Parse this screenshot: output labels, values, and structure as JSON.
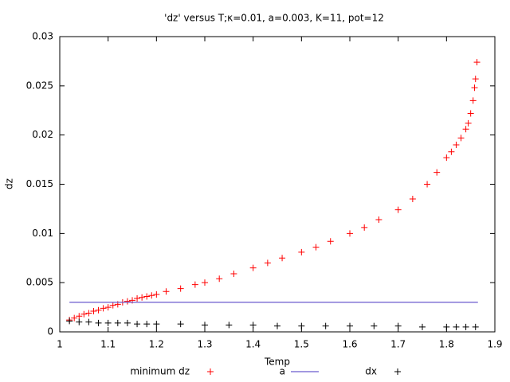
{
  "chart_data": {
    "type": "scatter",
    "title": "'dz' versus T;κ=0.01, a=0.003, K=11, pot=12",
    "xlabel": "Temp",
    "ylabel": "dz",
    "xlim": [
      1,
      1.9
    ],
    "xticks": [
      1,
      1.1,
      1.2,
      1.3,
      1.4,
      1.5,
      1.6,
      1.7,
      1.8,
      1.9
    ],
    "ylim": [
      0,
      0.03
    ],
    "yticks": [
      0,
      0.005,
      0.01,
      0.015,
      0.02,
      0.025,
      0.03
    ],
    "series": [
      {
        "name": "minimum dz",
        "color": "#ff0000",
        "style": "points",
        "x": [
          1.02,
          1.03,
          1.04,
          1.05,
          1.06,
          1.07,
          1.08,
          1.09,
          1.1,
          1.11,
          1.12,
          1.13,
          1.14,
          1.15,
          1.16,
          1.17,
          1.18,
          1.19,
          1.2,
          1.22,
          1.25,
          1.28,
          1.3,
          1.33,
          1.36,
          1.4,
          1.43,
          1.46,
          1.5,
          1.53,
          1.56,
          1.6,
          1.63,
          1.66,
          1.7,
          1.73,
          1.76,
          1.78,
          1.8,
          1.81,
          1.82,
          1.83,
          1.84,
          1.845,
          1.85,
          1.855,
          1.858,
          1.86,
          1.863
        ],
        "values": [
          0.0012,
          0.0014,
          0.0016,
          0.0018,
          0.0019,
          0.0021,
          0.0022,
          0.0024,
          0.0025,
          0.0027,
          0.0028,
          0.003,
          0.0031,
          0.0032,
          0.0034,
          0.0035,
          0.0036,
          0.0037,
          0.0038,
          0.0041,
          0.0044,
          0.0048,
          0.005,
          0.0054,
          0.0059,
          0.0065,
          0.007,
          0.0075,
          0.0081,
          0.0086,
          0.0092,
          0.01,
          0.0106,
          0.0114,
          0.0124,
          0.0135,
          0.015,
          0.0162,
          0.0177,
          0.0183,
          0.019,
          0.0197,
          0.0206,
          0.0212,
          0.0222,
          0.0235,
          0.0248,
          0.0257,
          0.0274
        ]
      },
      {
        "name": "a",
        "color": "#6a5acd",
        "style": "line",
        "x": [
          1.02,
          1.865
        ],
        "values": [
          0.003,
          0.003
        ]
      },
      {
        "name": "dx",
        "color": "#000000",
        "style": "points",
        "x": [
          1.02,
          1.04,
          1.06,
          1.08,
          1.1,
          1.12,
          1.14,
          1.16,
          1.18,
          1.2,
          1.25,
          1.3,
          1.35,
          1.4,
          1.45,
          1.5,
          1.55,
          1.6,
          1.65,
          1.7,
          1.75,
          1.8,
          1.82,
          1.84,
          1.86
        ],
        "values": [
          0.0011,
          0.001,
          0.001,
          0.0009,
          0.0009,
          0.0009,
          0.0009,
          0.0008,
          0.0008,
          0.0008,
          0.0008,
          0.0007,
          0.0007,
          0.0007,
          0.0006,
          0.0006,
          0.0006,
          0.0006,
          0.0006,
          0.0006,
          0.0005,
          0.0005,
          0.0005,
          0.0005,
          0.0005
        ]
      }
    ]
  }
}
